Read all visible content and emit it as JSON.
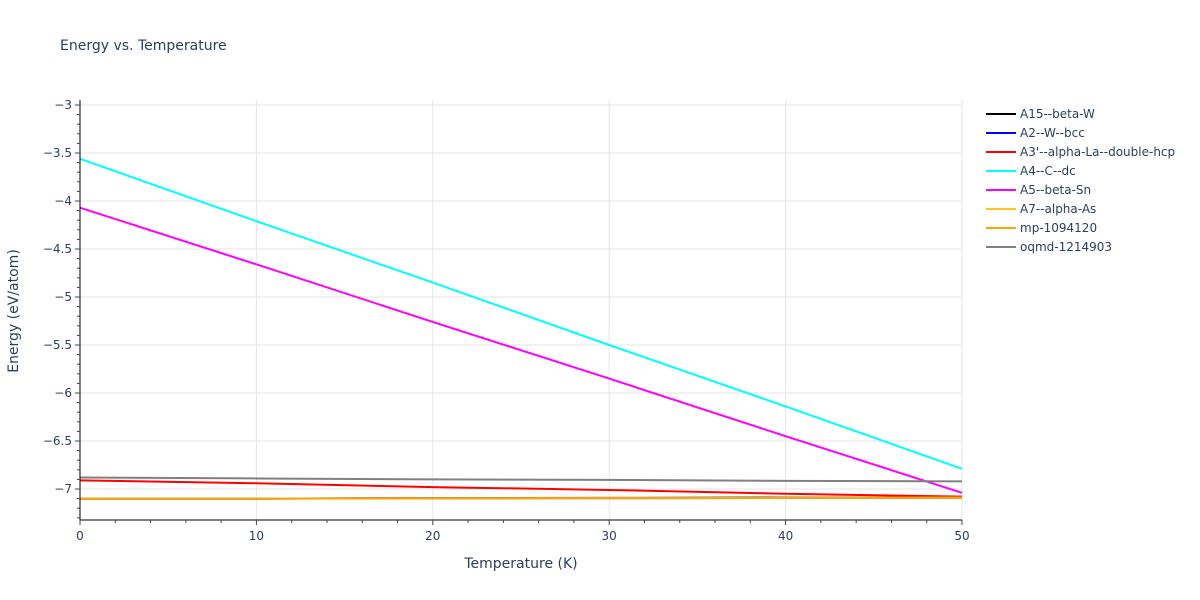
{
  "chart_data": {
    "type": "line",
    "title": "Energy vs. Temperature",
    "xlabel": "Temperature (K)",
    "ylabel": "Energy (eV/atom)",
    "xlim": [
      0,
      50
    ],
    "ylim": [
      -7.32,
      -2.95
    ],
    "x_ticks": [
      0,
      10,
      20,
      30,
      40,
      50
    ],
    "y_ticks": [
      -3,
      -3.5,
      -4,
      -4.5,
      -5,
      -5.5,
      -6,
      -6.5,
      -7
    ],
    "y_tick_labels": [
      "−3",
      "−3.5",
      "−4",
      "−4.5",
      "−5",
      "−5.5",
      "−6",
      "−6.5",
      "−7"
    ],
    "grid": true,
    "legend_position": "right",
    "x": [
      0,
      10,
      20,
      30,
      40,
      50
    ],
    "series": [
      {
        "name": "A15--beta-W",
        "color": "#000000",
        "values": [
          -7.1,
          -7.1,
          -7.095,
          -7.093,
          -7.09,
          -7.09
        ]
      },
      {
        "name": "A2--W--bcc",
        "color": "#0000ff",
        "values": [
          -7.1,
          -7.1,
          -7.097,
          -7.095,
          -7.093,
          -7.09
        ]
      },
      {
        "name": "A3'--alpha-La--double-hcp",
        "color": "#ff0000",
        "values": [
          -6.91,
          -6.94,
          -6.98,
          -7.01,
          -7.05,
          -7.08
        ]
      },
      {
        "name": "A4--C--dc",
        "color": "#00ffff",
        "values": [
          -3.56,
          -4.21,
          -4.85,
          -5.5,
          -6.14,
          -6.79
        ]
      },
      {
        "name": "A5--beta-Sn",
        "color": "#ff00ff",
        "values": [
          -4.07,
          -4.66,
          -5.26,
          -5.85,
          -6.45,
          -7.04
        ]
      },
      {
        "name": "A7--alpha-As",
        "color": "#ffc125",
        "values": [
          -7.1,
          -7.1,
          -7.097,
          -7.095,
          -7.093,
          -7.09
        ]
      },
      {
        "name": "mp-1094120",
        "color": "#ffa500",
        "values": [
          -7.1,
          -7.1,
          -7.097,
          -7.095,
          -7.093,
          -7.09
        ]
      },
      {
        "name": "oqmd-1214903",
        "color": "#808080",
        "values": [
          -6.88,
          -6.89,
          -6.9,
          -6.905,
          -6.915,
          -6.92
        ]
      }
    ]
  }
}
